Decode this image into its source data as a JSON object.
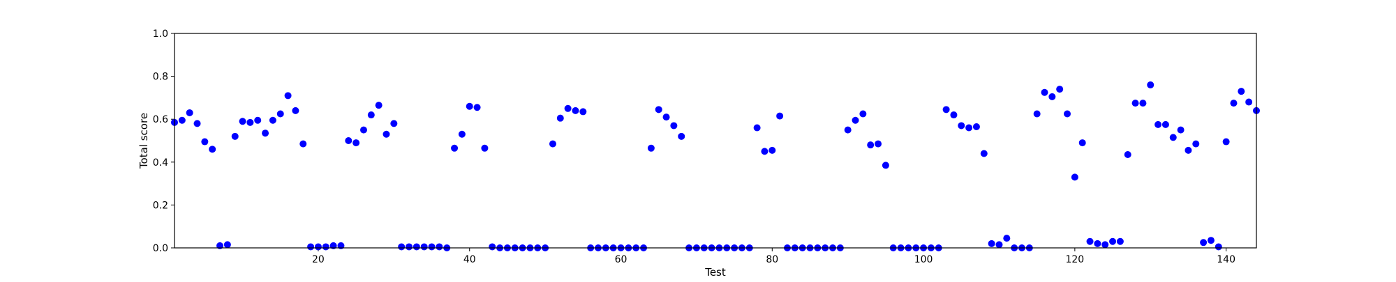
{
  "chart_data": {
    "type": "scatter",
    "title": "",
    "xlabel": "Test",
    "ylabel": "Total score",
    "xlim": [
      1,
      144
    ],
    "ylim": [
      0.0,
      1.0
    ],
    "xticks": [
      20,
      40,
      60,
      80,
      100,
      120,
      140
    ],
    "xtick_labels": [
      "20",
      "40",
      "60",
      "80",
      "100",
      "120",
      "140"
    ],
    "yticks": [
      0.0,
      0.2,
      0.4,
      0.6,
      0.8,
      1.0
    ],
    "ytick_labels": [
      "0.0",
      "0.2",
      "0.4",
      "0.6",
      "0.8",
      "1.0"
    ],
    "grid": false,
    "marker_color": "#0000ff",
    "series": [
      {
        "name": "",
        "x": [
          1,
          2,
          3,
          4,
          5,
          6,
          7,
          8,
          9,
          10,
          11,
          12,
          13,
          14,
          15,
          16,
          17,
          18,
          19,
          20,
          21,
          22,
          23,
          24,
          25,
          26,
          27,
          28,
          29,
          30,
          31,
          32,
          33,
          34,
          35,
          36,
          37,
          38,
          39,
          40,
          41,
          42,
          43,
          44,
          45,
          46,
          47,
          48,
          49,
          50,
          51,
          52,
          53,
          54,
          55,
          56,
          57,
          58,
          59,
          60,
          61,
          62,
          63,
          64,
          65,
          66,
          67,
          68,
          69,
          70,
          71,
          72,
          73,
          74,
          75,
          76,
          77,
          78,
          79,
          80,
          81,
          82,
          83,
          84,
          85,
          86,
          87,
          88,
          89,
          90,
          91,
          92,
          93,
          94,
          95,
          96,
          97,
          98,
          99,
          100,
          101,
          102,
          103,
          104,
          105,
          106,
          107,
          108,
          109,
          110,
          111,
          112,
          113,
          114,
          115,
          116,
          117,
          118,
          119,
          120,
          121,
          122,
          123,
          124,
          125,
          126,
          127,
          128,
          129,
          130,
          131,
          132,
          133,
          134,
          135,
          136,
          137,
          138,
          139,
          140,
          141,
          142,
          143,
          144
        ],
        "y": [
          0.585,
          0.595,
          0.63,
          0.58,
          0.495,
          0.46,
          0.01,
          0.015,
          0.52,
          0.59,
          0.585,
          0.595,
          0.535,
          0.595,
          0.625,
          0.71,
          0.64,
          0.485,
          0.005,
          0.005,
          0.005,
          0.01,
          0.01,
          0.5,
          0.49,
          0.55,
          0.62,
          0.665,
          0.53,
          0.58,
          0.005,
          0.005,
          0.005,
          0.005,
          0.005,
          0.005,
          0.0,
          0.465,
          0.53,
          0.66,
          0.655,
          0.465,
          0.005,
          0.0,
          0.0,
          0.0,
          0.0,
          0.0,
          0.0,
          0.0,
          0.485,
          0.605,
          0.65,
          0.64,
          0.635,
          0.0,
          0.0,
          0.0,
          0.0,
          0.0,
          0.0,
          0.0,
          0.0,
          0.465,
          0.645,
          0.61,
          0.57,
          0.52,
          0.0,
          0.0,
          0.0,
          0.0,
          0.0,
          0.0,
          0.0,
          0.0,
          0.0,
          0.56,
          0.45,
          0.455,
          0.615,
          0.0,
          0.0,
          0.0,
          0.0,
          0.0,
          0.0,
          0.0,
          0.0,
          0.55,
          0.595,
          0.625,
          0.48,
          0.485,
          0.385,
          0.0,
          0.0,
          0.0,
          0.0,
          0.0,
          0.0,
          0.0,
          0.645,
          0.62,
          0.57,
          0.56,
          0.565,
          0.44,
          0.02,
          0.015,
          0.045,
          0.0,
          0.0,
          0.0,
          0.625,
          0.725,
          0.705,
          0.74,
          0.625,
          0.33,
          0.49,
          0.03,
          0.02,
          0.015,
          0.03,
          0.03,
          0.435,
          0.675,
          0.675,
          0.76,
          0.575,
          0.575,
          0.515,
          0.55,
          0.455,
          0.485,
          0.025,
          0.035,
          0.005,
          0.495,
          0.675,
          0.73,
          0.68,
          0.64
        ]
      }
    ]
  }
}
